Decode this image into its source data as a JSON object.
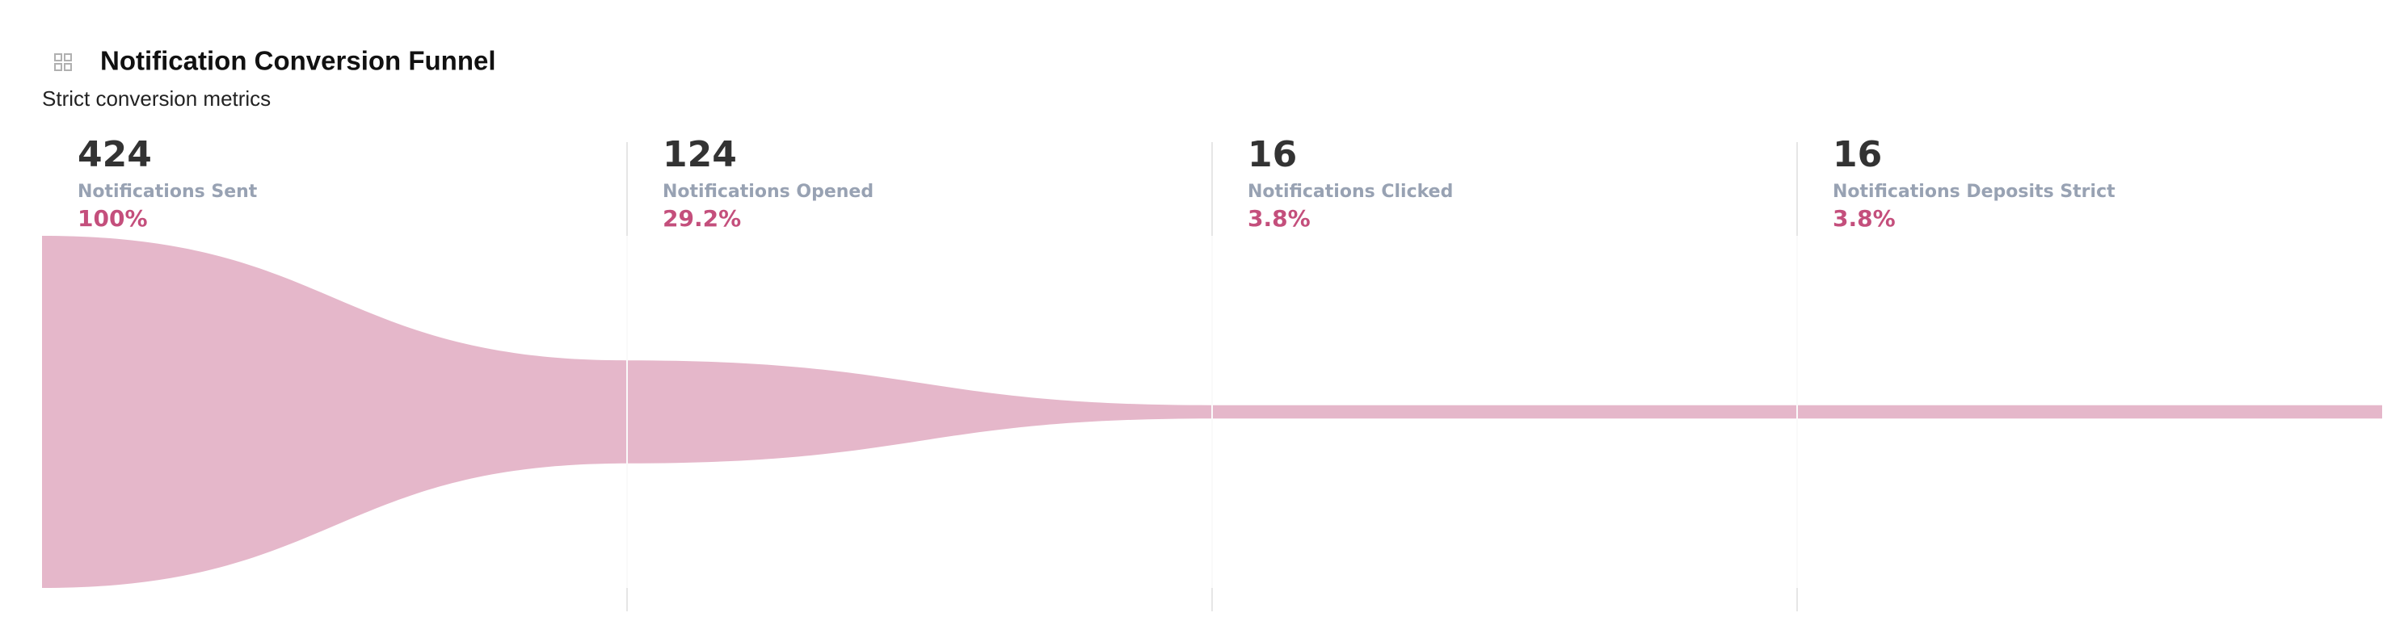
{
  "chart_data": {
    "type": "funnel",
    "title": "Notification Conversion Funnel",
    "subtitle": "Strict conversion metrics",
    "categories": [
      "Notifications Sent",
      "Notifications Opened",
      "Notifications Clicked",
      "Notifications Deposits Strict"
    ],
    "values": [
      424,
      124,
      16,
      16
    ],
    "conversion_labels": [
      "100%",
      "29.2%",
      "3.8%",
      "3.8%"
    ],
    "color": "#e5b7ca"
  }
}
